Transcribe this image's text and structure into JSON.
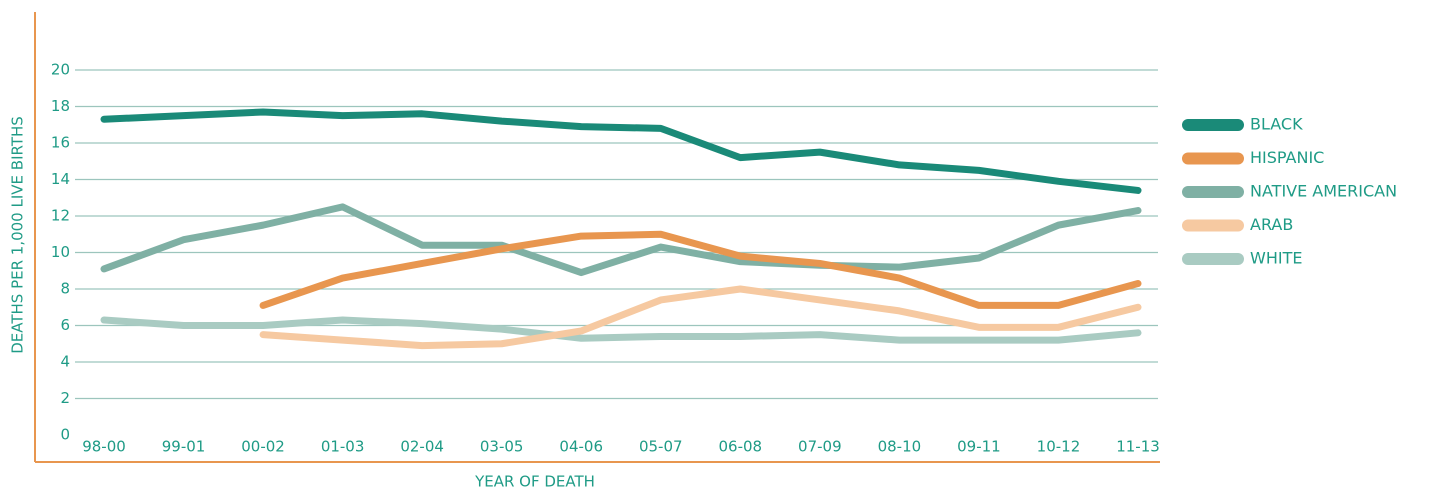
{
  "chart_data": {
    "type": "line",
    "x_label": "YEAR OF DEATH",
    "y_label": "DEATHS PER 1,000 LIVE BIRTHS",
    "categories": [
      "98-00",
      "99-01",
      "00-02",
      "01-03",
      "02-04",
      "03-05",
      "04-06",
      "05-07",
      "06-08",
      "07-09",
      "08-10",
      "09-11",
      "10-12",
      "11-13"
    ],
    "series": [
      {
        "name": "BLACK",
        "color": "#1a8a78",
        "values": [
          17.3,
          17.5,
          17.7,
          17.5,
          17.6,
          17.2,
          16.9,
          16.8,
          15.2,
          15.5,
          14.8,
          14.5,
          13.9,
          13.4
        ]
      },
      {
        "name": "HISPANIC",
        "color": "#e8964f",
        "values": [
          null,
          null,
          7.1,
          8.6,
          9.4,
          10.2,
          10.9,
          11.0,
          9.8,
          9.4,
          8.6,
          7.1,
          7.1,
          8.3
        ]
      },
      {
        "name": "NATIVE AMERICAN",
        "color": "#7fb0a4",
        "values": [
          9.1,
          10.7,
          11.5,
          12.5,
          10.4,
          10.4,
          8.9,
          10.3,
          9.5,
          9.3,
          9.2,
          9.7,
          11.5,
          12.3
        ]
      },
      {
        "name": "ARAB",
        "color": "#f6c9a1",
        "values": [
          null,
          null,
          5.5,
          5.2,
          4.9,
          5.0,
          5.7,
          7.4,
          8.0,
          7.4,
          6.8,
          5.9,
          5.9,
          7.0
        ]
      },
      {
        "name": "WHITE",
        "color": "#a9cbc2",
        "values": [
          6.3,
          6.0,
          6.0,
          6.3,
          6.1,
          5.8,
          5.3,
          5.4,
          5.4,
          5.5,
          5.2,
          5.2,
          5.2,
          5.6
        ]
      }
    ],
    "ylim": [
      0,
      20
    ],
    "yticks": [
      0,
      2,
      4,
      6,
      8,
      10,
      12,
      14,
      16,
      18,
      20
    ],
    "grid": true,
    "legend": "right"
  }
}
